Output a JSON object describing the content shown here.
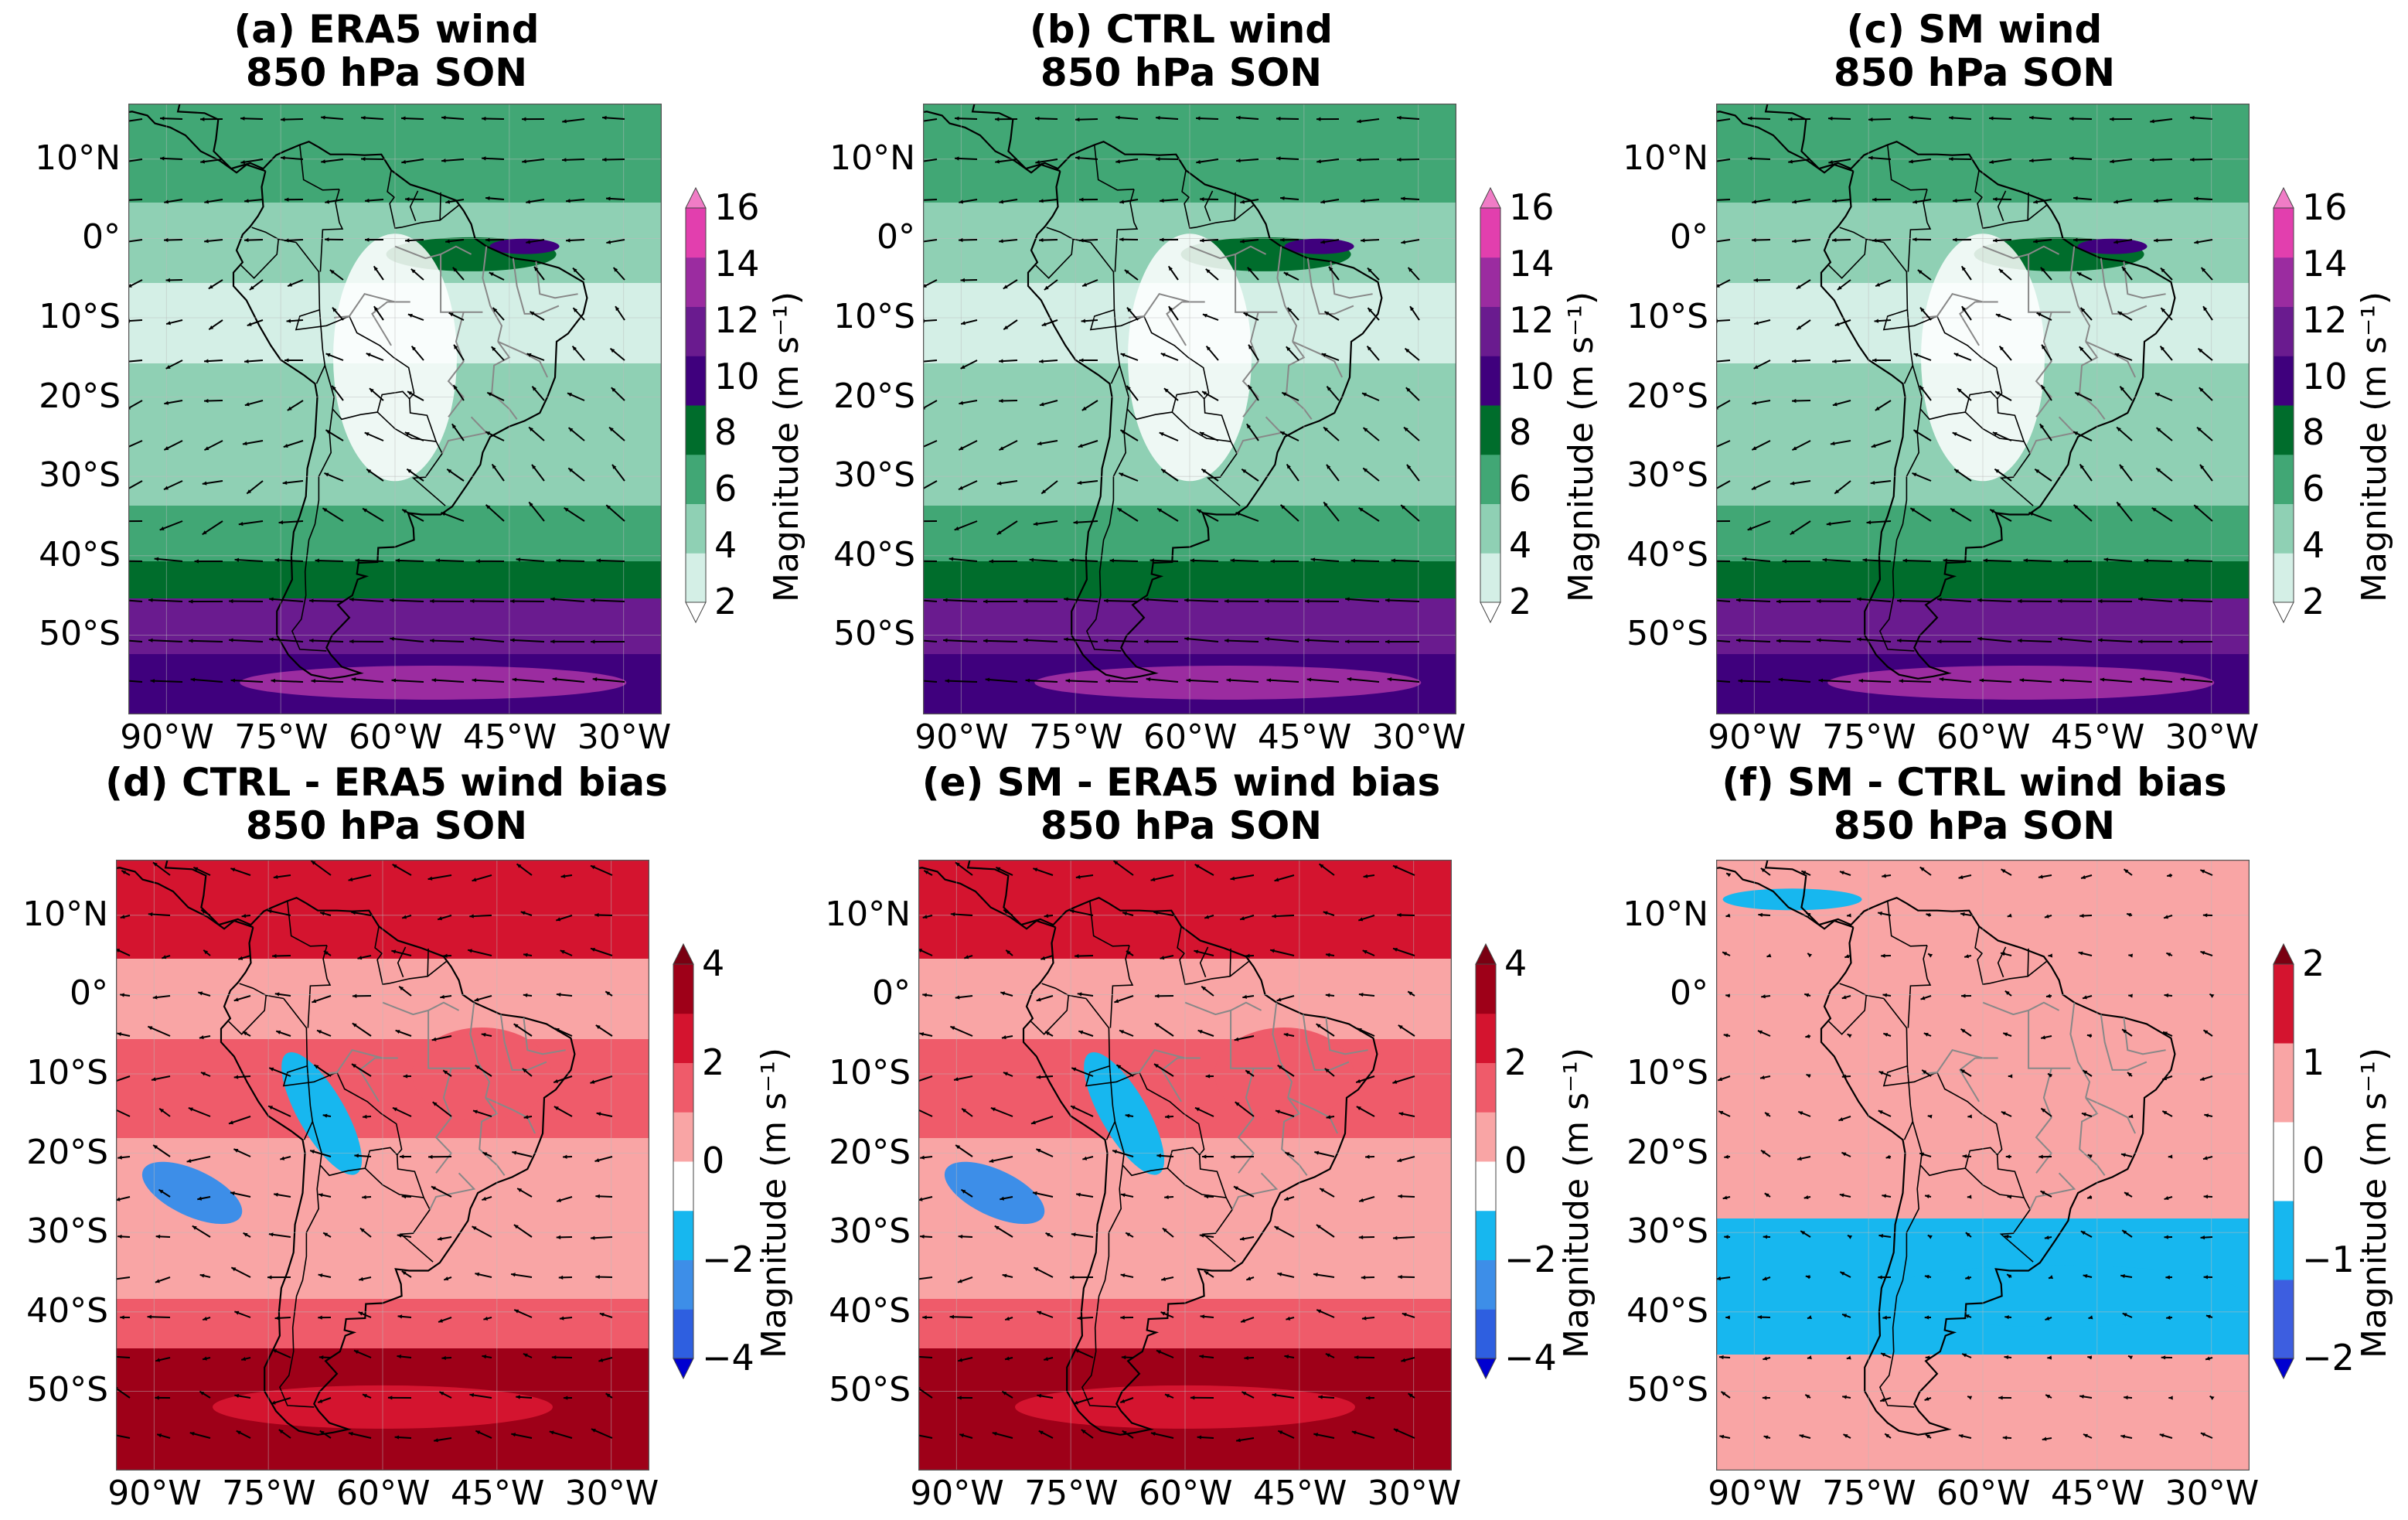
{
  "figure": {
    "panels": [
      {
        "id": "a",
        "title_line1": "(a) ERA5 wind",
        "title_line2": "850 hPa SON",
        "kind": "wind",
        "colorbar": {
          "label": "Magnitude (m s⁻¹)",
          "ticks": [
            "16",
            "14",
            "12",
            "10",
            "8",
            "6",
            "4",
            "2"
          ],
          "levels": [
            2,
            4,
            6,
            8,
            10,
            12,
            14,
            16
          ],
          "colors": [
            "#ffffff",
            "#d4efe6",
            "#8fd0b4",
            "#41a775",
            "#006d2c",
            "#3f007d",
            "#6a1b8f",
            "#9b2ca0",
            "#e23fae",
            "#f07cc6"
          ]
        }
      },
      {
        "id": "b",
        "title_line1": "(b) CTRL wind",
        "title_line2": "850 hPa SON",
        "kind": "wind",
        "colorbar": {
          "label": "Magnitude (m s⁻¹)",
          "ticks": [
            "16",
            "14",
            "12",
            "10",
            "8",
            "6",
            "4",
            "2"
          ],
          "levels": [
            2,
            4,
            6,
            8,
            10,
            12,
            14,
            16
          ],
          "colors": [
            "#ffffff",
            "#d4efe6",
            "#8fd0b4",
            "#41a775",
            "#006d2c",
            "#3f007d",
            "#6a1b8f",
            "#9b2ca0",
            "#e23fae",
            "#f07cc6"
          ]
        }
      },
      {
        "id": "c",
        "title_line1": "(c) SM wind",
        "title_line2": "850 hPa SON",
        "kind": "wind",
        "colorbar": {
          "label": "Magnitude (m s⁻¹)",
          "ticks": [
            "16",
            "14",
            "12",
            "10",
            "8",
            "6",
            "4",
            "2"
          ],
          "levels": [
            2,
            4,
            6,
            8,
            10,
            12,
            14,
            16
          ],
          "colors": [
            "#ffffff",
            "#d4efe6",
            "#8fd0b4",
            "#41a775",
            "#006d2c",
            "#3f007d",
            "#6a1b8f",
            "#9b2ca0",
            "#e23fae",
            "#f07cc6"
          ]
        }
      },
      {
        "id": "d",
        "title_line1": "(d) CTRL - ERA5 wind bias",
        "title_line2": "850 hPa SON",
        "kind": "bias",
        "colorbar": {
          "label": "Magnitude (m s⁻¹)",
          "ticks": [
            "4",
            "2",
            "0",
            "−2",
            "−4"
          ],
          "levels": [
            -5,
            -4,
            -3,
            -2,
            -1,
            1,
            2,
            3,
            4,
            5
          ],
          "colors": [
            "#0000d0",
            "#2e5fe0",
            "#3d8ee8",
            "#17b7ef",
            "#ffffff",
            "#f9a5a5",
            "#ef5b6a",
            "#d4142f",
            "#9e0018",
            "#7a0012"
          ]
        }
      },
      {
        "id": "e",
        "title_line1": "(e) SM - ERA5 wind bias",
        "title_line2": "850 hPa SON",
        "kind": "bias",
        "colorbar": {
          "label": "Magnitude (m s⁻¹)",
          "ticks": [
            "4",
            "2",
            "0",
            "−2",
            "−4"
          ],
          "levels": [
            -5,
            -4,
            -3,
            -2,
            -1,
            1,
            2,
            3,
            4,
            5
          ],
          "colors": [
            "#0000d0",
            "#2e5fe0",
            "#3d8ee8",
            "#17b7ef",
            "#ffffff",
            "#f9a5a5",
            "#ef5b6a",
            "#d4142f",
            "#9e0018",
            "#7a0012"
          ]
        }
      },
      {
        "id": "f",
        "title_line1": "(f) SM - CTRL wind bias",
        "title_line2": "850 hPa SON",
        "kind": "bias_small",
        "colorbar": {
          "label": "Magnitude (m s⁻¹)",
          "ticks": [
            "2",
            "1",
            "0",
            "−1",
            "−2"
          ],
          "levels": [
            -2,
            -1.5,
            -1,
            -0.5,
            0.5,
            1,
            1.5,
            2
          ],
          "colors": [
            "#0000d0",
            "#3d5ee0",
            "#17b7ef",
            "#ffffff",
            "#f9a5a5",
            "#d4142f",
            "#7a0012"
          ]
        }
      }
    ],
    "lat_labels": [
      "10°N",
      "0°",
      "10°S",
      "20°S",
      "30°S",
      "40°S",
      "50°S"
    ],
    "lon_labels": [
      "90°W",
      "75°W",
      "60°W",
      "45°W",
      "30°W"
    ]
  }
}
